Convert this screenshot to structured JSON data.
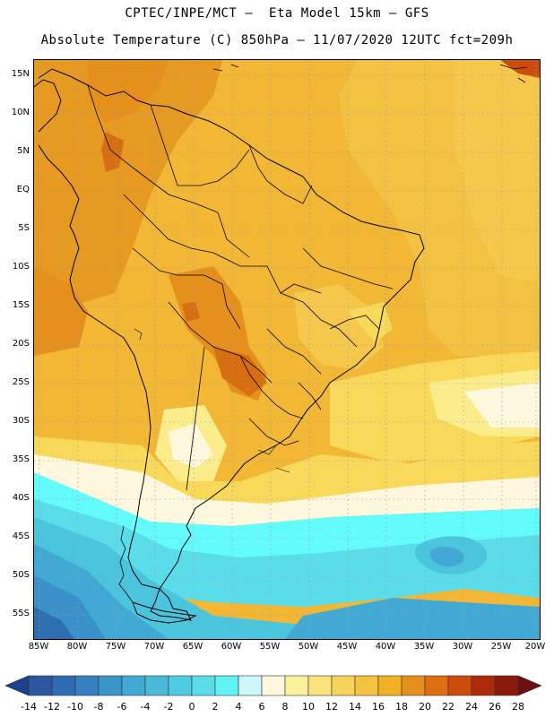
{
  "header": {
    "title_line1": "CPTEC/INPE/MCT –  Eta Model 15km – GFS",
    "title_line2": "Absolute Temperature (C) 850hPa – 11/07/2020 12UTC fct=209h"
  },
  "map": {
    "latitude_labels": [
      "15N",
      "10N",
      "5N",
      "EQ",
      "5S",
      "10S",
      "15S",
      "20S",
      "25S",
      "30S",
      "35S",
      "40S",
      "45S",
      "50S",
      "55S"
    ],
    "longitude_labels": [
      "85W",
      "80W",
      "75W",
      "70W",
      "65W",
      "60W",
      "55W",
      "50W",
      "45W",
      "40W",
      "35W",
      "30W",
      "25W",
      "20W"
    ],
    "colors": {
      "warm_20": "#e58f1d",
      "warm_18": "#f1b735",
      "warm_16": "#f5c74a",
      "warm_14": "#f8d95a",
      "warm_10": "#fbed8c",
      "warm_8": "#fff8df",
      "cool_4": "#63fbfb",
      "cool_2": "#5adde8",
      "cool_0": "#4bc5de",
      "cool_m2": "#42a9d4",
      "cool_m6": "#3a90c8",
      "cool_m10": "#2c6eb0"
    }
  },
  "colorbar": {
    "labels": [
      "-14",
      "-12",
      "-10",
      "-8",
      "-6",
      "-4",
      "-2",
      "0",
      "2",
      "4",
      "6",
      "8",
      "10",
      "12",
      "14",
      "16",
      "18",
      "20",
      "22",
      "24",
      "26",
      "28"
    ],
    "colors": [
      "#1c3f8e",
      "#2a57a0",
      "#2f6bb2",
      "#3580bf",
      "#3a95c8",
      "#42a9d4",
      "#4bbad9",
      "#51cbe2",
      "#5adde8",
      "#63f2f5",
      "#cff6fb",
      "#fff8df",
      "#fbf19a",
      "#f9e37a",
      "#f6d45c",
      "#f4c440",
      "#f2b124",
      "#e58f1d",
      "#df6e12",
      "#cc4d0b",
      "#ad2b0a",
      "#8a1a0c",
      "#6b0f12"
    ]
  }
}
